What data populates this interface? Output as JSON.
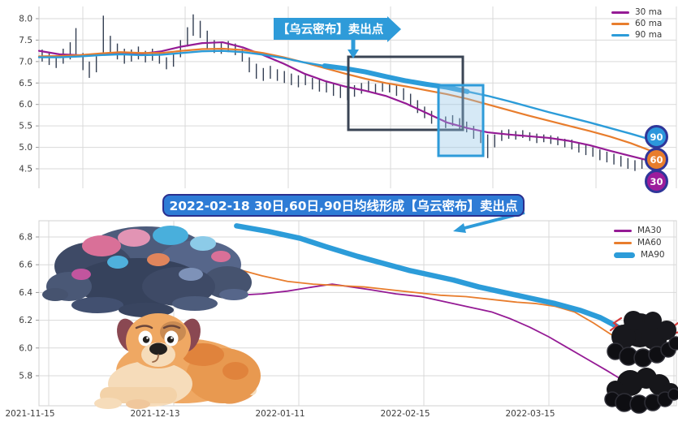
{
  "colors": {
    "ma30": "#951B95",
    "ma60": "#E87D2D",
    "ma90": "#2C9CD9",
    "price_bars": "#333E52",
    "accent_blue": "#2E9BD9",
    "midbox_fill": "#2E7CD6",
    "midbox_border": "#2B2F8E",
    "badge_ring": "#2F3699",
    "badge_90": "#2C96DC",
    "badge_60": "#E87D2D",
    "badge_30": "#9C1D9C",
    "grid": "#D9D9D9",
    "tick_text": "#3D3D3D",
    "dark_box": "#3A4454",
    "lightning": "#D63C3C"
  },
  "middle_annotation": {
    "text": "2022-02-18 30日,60日,90日均线形成【乌云密布】卖出点"
  },
  "chart_data": [
    {
      "type": "candlestick",
      "title": "",
      "xlabel": "",
      "ylabel": "",
      "ylim": [
        4.3,
        8.3
      ],
      "yticks": [
        8.0,
        7.5,
        7.0,
        6.5,
        6.0,
        5.5,
        5.0,
        4.5
      ],
      "x_range": [
        "2021-11-15",
        "2022-04-01"
      ],
      "grid": true,
      "legend_position": "upper right",
      "badges": [
        "90",
        "60",
        "30"
      ],
      "annotations": {
        "banner": "【乌云密布】卖出点",
        "dark_box_note": "dark-cloud-cover pattern region",
        "blue_box_note": "sell signal zone"
      },
      "price_bars": [
        [
          0.5,
          7.0,
          7.28
        ],
        [
          1.6,
          6.92,
          7.22
        ],
        [
          2.7,
          6.85,
          7.15
        ],
        [
          3.8,
          6.95,
          7.3
        ],
        [
          4.9,
          7.05,
          7.45
        ],
        [
          5.8,
          7.1,
          7.78
        ],
        [
          6.9,
          6.8,
          7.2
        ],
        [
          7.9,
          6.62,
          7.0
        ],
        [
          9.0,
          6.75,
          7.12
        ],
        [
          10.1,
          7.2,
          8.07
        ],
        [
          11.2,
          7.15,
          7.6
        ],
        [
          12.3,
          7.05,
          7.42
        ],
        [
          13.4,
          6.95,
          7.3
        ],
        [
          14.5,
          7.0,
          7.28
        ],
        [
          15.6,
          7.05,
          7.35
        ],
        [
          16.7,
          6.98,
          7.25
        ],
        [
          17.8,
          7.02,
          7.3
        ],
        [
          18.9,
          6.95,
          7.22
        ],
        [
          20.0,
          6.82,
          7.1
        ],
        [
          21.1,
          6.88,
          7.18
        ],
        [
          22.2,
          7.1,
          7.5
        ],
        [
          23.3,
          7.35,
          7.8
        ],
        [
          24.2,
          7.6,
          8.1
        ],
        [
          25.3,
          7.55,
          7.95
        ],
        [
          26.4,
          7.3,
          7.72
        ],
        [
          27.5,
          7.2,
          7.5
        ],
        [
          28.6,
          7.18,
          7.45
        ],
        [
          29.7,
          7.22,
          7.48
        ],
        [
          30.8,
          7.15,
          7.42
        ],
        [
          31.9,
          7.0,
          7.3
        ],
        [
          33.0,
          6.75,
          7.1
        ],
        [
          34.1,
          6.6,
          6.95
        ],
        [
          35.2,
          6.55,
          6.85
        ],
        [
          36.3,
          6.6,
          6.9
        ],
        [
          37.4,
          6.55,
          6.82
        ],
        [
          38.5,
          6.5,
          6.78
        ],
        [
          39.6,
          6.45,
          6.72
        ],
        [
          40.7,
          6.4,
          6.68
        ],
        [
          41.8,
          6.45,
          6.7
        ],
        [
          42.9,
          6.35,
          6.62
        ],
        [
          44.0,
          6.3,
          6.58
        ],
        [
          45.1,
          6.28,
          6.55
        ],
        [
          46.2,
          6.2,
          6.5
        ],
        [
          47.3,
          6.15,
          6.45
        ],
        [
          48.4,
          6.1,
          6.4
        ],
        [
          49.5,
          6.18,
          6.45
        ],
        [
          50.6,
          6.25,
          6.5
        ],
        [
          51.7,
          6.3,
          6.55
        ],
        [
          52.8,
          6.25,
          6.48
        ],
        [
          53.9,
          6.3,
          6.52
        ],
        [
          55.0,
          6.28,
          6.5
        ],
        [
          56.1,
          6.2,
          6.45
        ],
        [
          57.2,
          6.1,
          6.38
        ],
        [
          58.3,
          5.95,
          6.25
        ],
        [
          59.4,
          5.8,
          6.1
        ],
        [
          60.5,
          5.68,
          5.95
        ],
        [
          61.6,
          5.55,
          5.85
        ],
        [
          62.7,
          5.5,
          5.78
        ],
        [
          63.8,
          5.45,
          5.72
        ],
        [
          64.9,
          5.5,
          5.75
        ],
        [
          66.0,
          5.42,
          5.68
        ],
        [
          67.1,
          5.35,
          5.6
        ],
        [
          68.2,
          5.2,
          5.5
        ],
        [
          69.3,
          5.1,
          5.4
        ],
        [
          70.4,
          4.75,
          5.3
        ],
        [
          71.5,
          5.0,
          5.3
        ],
        [
          72.6,
          5.15,
          5.4
        ],
        [
          73.7,
          5.2,
          5.42
        ],
        [
          74.8,
          5.18,
          5.38
        ],
        [
          75.9,
          5.22,
          5.4
        ],
        [
          77.0,
          5.15,
          5.35
        ],
        [
          78.1,
          5.1,
          5.32
        ],
        [
          79.2,
          5.12,
          5.3
        ],
        [
          80.3,
          5.08,
          5.28
        ],
        [
          81.4,
          5.05,
          5.25
        ],
        [
          82.5,
          5.0,
          5.2
        ],
        [
          83.6,
          4.95,
          5.18
        ],
        [
          84.7,
          4.88,
          5.1
        ],
        [
          85.8,
          4.82,
          5.05
        ],
        [
          86.9,
          4.78,
          5.0
        ],
        [
          88.0,
          4.7,
          4.95
        ],
        [
          89.1,
          4.65,
          4.9
        ],
        [
          90.2,
          4.6,
          4.85
        ],
        [
          91.3,
          4.55,
          4.8
        ],
        [
          92.4,
          4.5,
          4.75
        ],
        [
          93.5,
          4.45,
          4.7
        ],
        [
          94.6,
          4.5,
          4.72
        ],
        [
          95.7,
          4.55,
          4.75
        ]
      ],
      "series": [
        {
          "name": "30 ma",
          "color": "#951B95",
          "width": 2.2,
          "x": [
            0,
            3.2,
            6.4,
            9.6,
            12.8,
            16,
            19.2,
            22.4,
            25.6,
            28.8,
            32,
            35.2,
            38.4,
            41.6,
            44.8,
            48,
            51.2,
            54.4,
            57.6,
            60.8,
            64,
            67.2,
            70.4,
            73.6,
            76.8,
            80,
            83.2,
            86.4,
            89.6,
            92.8,
            96
          ],
          "values": [
            7.25,
            7.17,
            7.15,
            7.18,
            7.2,
            7.18,
            7.24,
            7.35,
            7.43,
            7.45,
            7.33,
            7.15,
            6.95,
            6.72,
            6.55,
            6.42,
            6.32,
            6.2,
            6.02,
            5.8,
            5.58,
            5.45,
            5.35,
            5.3,
            5.26,
            5.22,
            5.15,
            5.05,
            4.92,
            4.8,
            4.68
          ]
        },
        {
          "name": "60 ma",
          "color": "#E87D2D",
          "width": 2.2,
          "x": [
            0,
            3.2,
            6.4,
            9.6,
            12.8,
            16,
            19.2,
            22.4,
            25.6,
            28.8,
            32,
            35.2,
            38.4,
            41.6,
            44.8,
            48,
            51.2,
            54.4,
            57.6,
            60.8,
            64,
            67.2,
            70.4,
            73.6,
            76.8,
            80,
            83.2,
            86.4,
            89.6,
            92.8,
            96
          ],
          "values": [
            7.12,
            7.13,
            7.15,
            7.19,
            7.22,
            7.2,
            7.2,
            7.25,
            7.29,
            7.3,
            7.27,
            7.2,
            7.1,
            6.98,
            6.85,
            6.72,
            6.6,
            6.5,
            6.42,
            6.33,
            6.24,
            6.13,
            6.0,
            5.87,
            5.74,
            5.62,
            5.5,
            5.38,
            5.25,
            5.1,
            4.92
          ]
        },
        {
          "name": "90 ma",
          "color": "#2C9CD9",
          "width": 2.4,
          "x": [
            0,
            3.2,
            6.4,
            9.6,
            12.8,
            16,
            19.2,
            22.4,
            25.6,
            28.8,
            32,
            35.2,
            38.4,
            41.6,
            44.8,
            48,
            51.2,
            54.4,
            57.6,
            60.8,
            64,
            67.2,
            70.4,
            73.6,
            76.8,
            80,
            83.2,
            86.4,
            89.6,
            92.8,
            96
          ],
          "values": [
            7.1,
            7.1,
            7.12,
            7.15,
            7.17,
            7.15,
            7.16,
            7.2,
            7.24,
            7.25,
            7.22,
            7.16,
            7.08,
            6.98,
            6.9,
            6.84,
            6.76,
            6.65,
            6.55,
            6.47,
            6.4,
            6.3,
            6.2,
            6.08,
            5.95,
            5.82,
            5.7,
            5.58,
            5.45,
            5.32,
            5.18
          ]
        }
      ]
    },
    {
      "type": "line",
      "title": "",
      "xlabel": "",
      "ylabel": "",
      "ylim": [
        5.55,
        6.95
      ],
      "yticks": [
        6.8,
        6.6,
        6.4,
        6.2,
        6.0,
        5.8
      ],
      "xticklabels": [
        "2021-11-15",
        "2021-12-13",
        "2022-01-11",
        "2022-02-15",
        "2022-03-15"
      ],
      "grid": true,
      "legend_position": "upper right",
      "series": [
        {
          "name": "MA30",
          "color": "#951B95",
          "width": 1.8,
          "x": [
            31,
            35,
            39,
            43,
            46,
            49,
            52,
            56,
            60,
            64,
            68,
            71,
            74,
            77,
            80,
            83,
            86,
            89,
            91.5,
            93.5
          ],
          "values": [
            6.38,
            6.39,
            6.41,
            6.44,
            6.46,
            6.44,
            6.42,
            6.39,
            6.37,
            6.33,
            6.29,
            6.26,
            6.21,
            6.15,
            6.08,
            6.0,
            5.92,
            5.84,
            5.77,
            5.72
          ]
        },
        {
          "name": "MA60",
          "color": "#E87D2D",
          "width": 1.8,
          "x": [
            31,
            35,
            39,
            43,
            47,
            51,
            55,
            59,
            63,
            67,
            71,
            75,
            78,
            81,
            84,
            87,
            90,
            92.5
          ],
          "values": [
            6.57,
            6.52,
            6.48,
            6.46,
            6.45,
            6.44,
            6.42,
            6.4,
            6.38,
            6.37,
            6.35,
            6.33,
            6.32,
            6.3,
            6.26,
            6.18,
            6.09,
            6.02
          ]
        },
        {
          "name": "MA90",
          "color": "#2C9CD9",
          "width": 6.5,
          "x": [
            31,
            36,
            41,
            45,
            50,
            54,
            58,
            62,
            65,
            69,
            73,
            77,
            81,
            85,
            88,
            90.5,
            92.5
          ],
          "values": [
            6.88,
            6.84,
            6.79,
            6.73,
            6.66,
            6.61,
            6.56,
            6.52,
            6.49,
            6.44,
            6.4,
            6.36,
            6.32,
            6.27,
            6.22,
            6.16,
            6.1
          ]
        }
      ]
    }
  ]
}
